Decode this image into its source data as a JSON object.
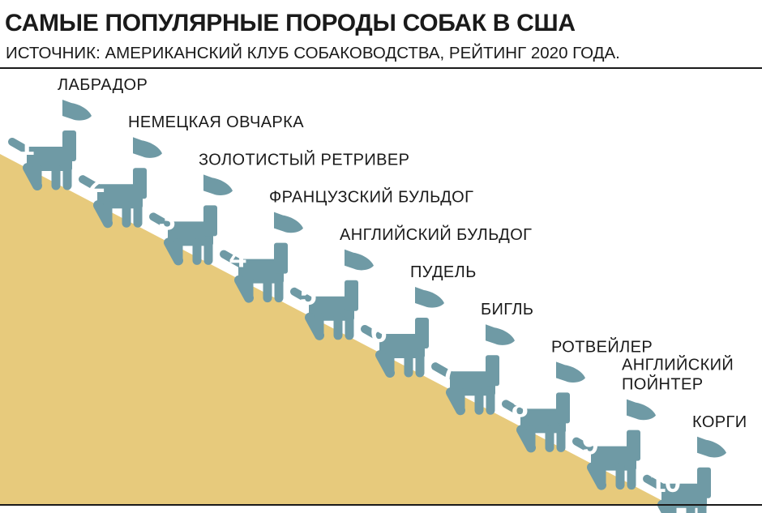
{
  "header": {
    "title": "САМЫЕ ПОПУЛЯРНЫЕ ПОРОДЫ СОБАК В США",
    "subtitle": "ИСТОЧНИК: АМЕРИКАНСКИЙ КЛУБ СОБАКОВОДСТВА, РЕЙТИНГ 2020 ГОДА."
  },
  "colors": {
    "dog": "#6f9aa5",
    "slope": "#e7ca7c",
    "text": "#1a1a1a",
    "number": "#ffffff"
  },
  "breeds": [
    {
      "rank": "1",
      "name": [
        "ЛАБРАДОР"
      ]
    },
    {
      "rank": "2",
      "name": [
        "НЕМЕЦКАЯ ОВЧАРКА"
      ]
    },
    {
      "rank": "3",
      "name": [
        "ЗОЛОТИСТЫЙ РЕТРИВЕР"
      ]
    },
    {
      "rank": "4",
      "name": [
        "ФРАНЦУЗСКИЙ БУЛЬДОГ"
      ]
    },
    {
      "rank": "5",
      "name": [
        "АНГЛИЙСКИЙ БУЛЬДОГ"
      ]
    },
    {
      "rank": "6",
      "name": [
        "ПУДЕЛЬ"
      ]
    },
    {
      "rank": "7",
      "name": [
        "БИГЛЬ"
      ]
    },
    {
      "rank": "8",
      "name": [
        "РОТВЕЙЛЕР"
      ]
    },
    {
      "rank": "9",
      "name": [
        "АНГЛИЙСКИЙ",
        "ПОЙНТЕР"
      ]
    },
    {
      "rank": "10",
      "name": [
        "КОРГИ"
      ]
    }
  ]
}
